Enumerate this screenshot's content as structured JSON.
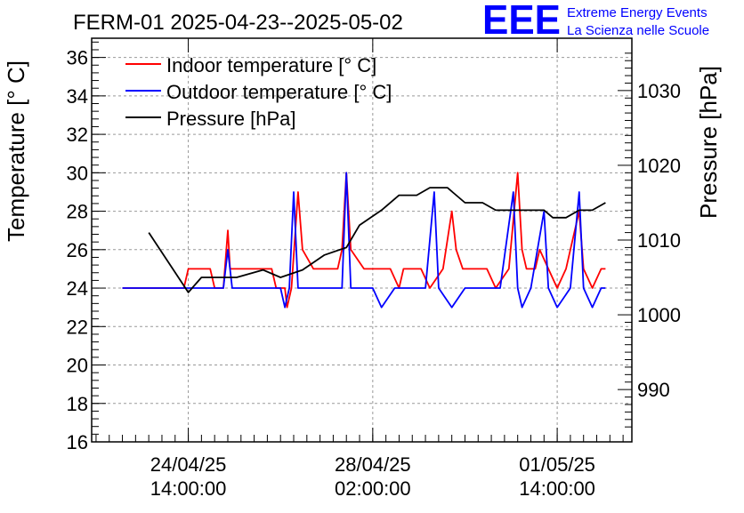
{
  "title": "FERM-01 2025-04-23--2025-05-02",
  "logo": {
    "text": "EEE",
    "line1": "Extreme Energy Events",
    "line2": "La Scienza nelle Scuole",
    "color": "#0000ff"
  },
  "chart_data": {
    "type": "line",
    "title": "FERM-01 2025-04-23--2025-05-02",
    "ylabel": "Temperature [° C]",
    "y2label": "Pressure [hPa]",
    "ylim": [
      16,
      37
    ],
    "y2lim": [
      983,
      1037
    ],
    "xlim": [
      "2025-04-22 18:00",
      "2025-05-03 00:00"
    ],
    "grid": true,
    "legend_position": "top-left",
    "yticks": [
      "16",
      "18",
      "20",
      "22",
      "24",
      "26",
      "28",
      "30",
      "32",
      "34",
      "36"
    ],
    "y2ticks": [
      "990",
      "1000",
      "1010",
      "1020",
      "1030"
    ],
    "xticks": [
      {
        "at": "2025-04-24 14:00",
        "line1": "24/04/25",
        "line2": "14:00:00"
      },
      {
        "at": "2025-04-28 02:00",
        "line1": "28/04/25",
        "line2": "02:00:00"
      },
      {
        "at": "2025-05-01 14:00",
        "line1": "01/05/25",
        "line2": "14:00:00"
      }
    ],
    "series": [
      {
        "name": "Indoor temperature [° C]",
        "axis": "left",
        "color": "#ff0000",
        "points": [
          [
            "2025-04-23 08:00",
            24
          ],
          [
            "2025-04-24 12:00",
            24
          ],
          [
            "2025-04-24 14:00",
            25
          ],
          [
            "2025-04-25 00:00",
            25
          ],
          [
            "2025-04-25 02:00",
            24
          ],
          [
            "2025-04-25 06:00",
            24
          ],
          [
            "2025-04-25 08:00",
            27
          ],
          [
            "2025-04-25 09:00",
            25
          ],
          [
            "2025-04-25 14:00",
            25
          ],
          [
            "2025-04-26 04:00",
            25
          ],
          [
            "2025-04-26 06:00",
            24
          ],
          [
            "2025-04-26 10:00",
            24
          ],
          [
            "2025-04-26 11:00",
            23
          ],
          [
            "2025-04-26 13:00",
            24
          ],
          [
            "2025-04-26 16:00",
            29
          ],
          [
            "2025-04-26 18:00",
            26
          ],
          [
            "2025-04-26 23:00",
            25
          ],
          [
            "2025-04-27 10:00",
            25
          ],
          [
            "2025-04-27 12:00",
            26
          ],
          [
            "2025-04-27 14:00",
            30
          ],
          [
            "2025-04-27 16:00",
            26
          ],
          [
            "2025-04-27 22:00",
            25
          ],
          [
            "2025-04-28 10:00",
            25
          ],
          [
            "2025-04-28 14:00",
            24
          ],
          [
            "2025-04-28 16:00",
            25
          ],
          [
            "2025-04-29 00:00",
            25
          ],
          [
            "2025-04-29 04:00",
            24
          ],
          [
            "2025-04-29 10:00",
            25
          ],
          [
            "2025-04-29 14:00",
            28
          ],
          [
            "2025-04-29 16:00",
            26
          ],
          [
            "2025-04-29 19:00",
            25
          ],
          [
            "2025-04-30 06:00",
            25
          ],
          [
            "2025-04-30 10:00",
            24
          ],
          [
            "2025-04-30 16:00",
            25
          ],
          [
            "2025-04-30 20:00",
            30
          ],
          [
            "2025-04-30 22:00",
            26
          ],
          [
            "2025-05-01 00:00",
            25
          ],
          [
            "2025-05-01 04:00",
            25
          ],
          [
            "2025-05-01 06:00",
            26
          ],
          [
            "2025-05-01 10:00",
            25
          ],
          [
            "2025-05-01 14:00",
            24
          ],
          [
            "2025-05-01 18:00",
            25
          ],
          [
            "2025-05-01 20:00",
            26
          ],
          [
            "2025-05-02 00:00",
            28
          ],
          [
            "2025-05-02 02:00",
            25
          ],
          [
            "2025-05-02 06:00",
            24
          ],
          [
            "2025-05-02 10:00",
            25
          ],
          [
            "2025-05-02 12:00",
            25
          ]
        ]
      },
      {
        "name": "Outdoor temperature [° C]",
        "axis": "left",
        "color": "#0000ff",
        "points": [
          [
            "2025-04-23 08:00",
            24
          ],
          [
            "2025-04-24 14:00",
            24
          ],
          [
            "2025-04-25 06:00",
            24
          ],
          [
            "2025-04-25 08:00",
            26
          ],
          [
            "2025-04-25 10:00",
            24
          ],
          [
            "2025-04-26 08:00",
            24
          ],
          [
            "2025-04-26 10:00",
            23
          ],
          [
            "2025-04-26 12:00",
            24
          ],
          [
            "2025-04-26 14:00",
            29
          ],
          [
            "2025-04-26 16:00",
            24
          ],
          [
            "2025-04-27 12:00",
            24
          ],
          [
            "2025-04-27 14:00",
            30
          ],
          [
            "2025-04-27 16:00",
            24
          ],
          [
            "2025-04-28 02:00",
            24
          ],
          [
            "2025-04-28 06:00",
            23
          ],
          [
            "2025-04-28 12:00",
            24
          ],
          [
            "2025-04-29 02:00",
            24
          ],
          [
            "2025-04-29 06:00",
            29
          ],
          [
            "2025-04-29 08:00",
            24
          ],
          [
            "2025-04-29 14:00",
            23
          ],
          [
            "2025-04-29 20:00",
            24
          ],
          [
            "2025-04-30 12:00",
            24
          ],
          [
            "2025-04-30 18:00",
            29
          ],
          [
            "2025-04-30 20:00",
            24
          ],
          [
            "2025-04-30 22:00",
            23
          ],
          [
            "2025-05-01 02:00",
            24
          ],
          [
            "2025-05-01 08:00",
            28
          ],
          [
            "2025-05-01 10:00",
            24
          ],
          [
            "2025-05-01 14:00",
            23
          ],
          [
            "2025-05-01 20:00",
            24
          ],
          [
            "2025-05-02 00:00",
            29
          ],
          [
            "2025-05-02 02:00",
            24
          ],
          [
            "2025-05-02 06:00",
            23
          ],
          [
            "2025-05-02 10:00",
            24
          ],
          [
            "2025-05-02 12:00",
            24
          ]
        ]
      },
      {
        "name": "Pressure [hPa]",
        "axis": "right",
        "color": "#000000",
        "points": [
          [
            "2025-04-23 20:00",
            1011
          ],
          [
            "2025-04-24 14:00",
            1003
          ],
          [
            "2025-04-24 20:00",
            1005
          ],
          [
            "2025-04-25 04:00",
            1005
          ],
          [
            "2025-04-25 12:00",
            1005
          ],
          [
            "2025-04-26 00:00",
            1006
          ],
          [
            "2025-04-26 08:00",
            1005
          ],
          [
            "2025-04-26 18:00",
            1006
          ],
          [
            "2025-04-27 04:00",
            1008
          ],
          [
            "2025-04-27 14:00",
            1009
          ],
          [
            "2025-04-27 20:00",
            1012
          ],
          [
            "2025-04-28 06:00",
            1014
          ],
          [
            "2025-04-28 14:00",
            1016
          ],
          [
            "2025-04-28 22:00",
            1016
          ],
          [
            "2025-04-29 04:00",
            1017
          ],
          [
            "2025-04-29 12:00",
            1017
          ],
          [
            "2025-04-29 20:00",
            1015
          ],
          [
            "2025-04-30 04:00",
            1015
          ],
          [
            "2025-04-30 10:00",
            1014
          ],
          [
            "2025-04-30 20:00",
            1014
          ],
          [
            "2025-05-01 04:00",
            1014
          ],
          [
            "2025-05-01 08:00",
            1014
          ],
          [
            "2025-05-01 12:00",
            1013
          ],
          [
            "2025-05-01 18:00",
            1013
          ],
          [
            "2025-05-02 00:00",
            1014
          ],
          [
            "2025-05-02 06:00",
            1014
          ],
          [
            "2025-05-02 12:00",
            1015
          ]
        ]
      }
    ]
  }
}
